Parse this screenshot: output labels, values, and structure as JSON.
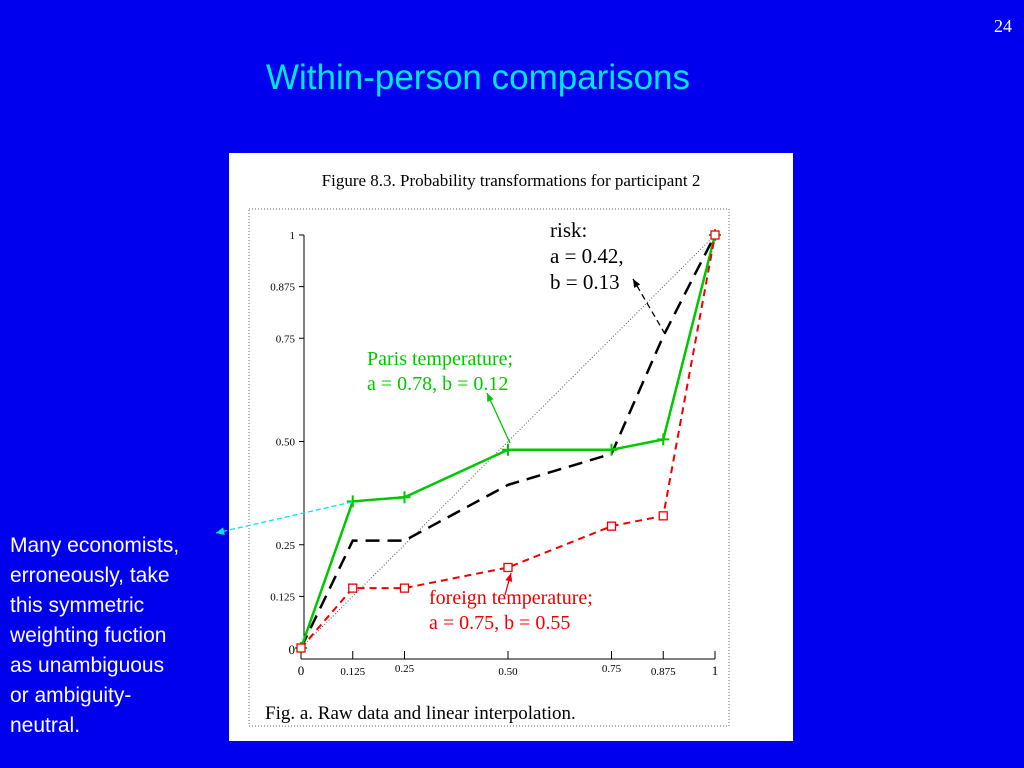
{
  "slide_number": "24",
  "title": "Within-person comparisons",
  "side_note": [
    "Many economists,",
    "erroneously, take",
    "this symmetric",
    "weighting fuction",
    "as unambiguous",
    "or ambiguity-",
    "neutral."
  ],
  "figure": {
    "caption": "Figure 8.3.  Probability transformations for participant 2",
    "subcaption": "Fig. a. Raw data and linear interpolation."
  },
  "colors": {
    "background": "#0000ee",
    "title": "#00e5e5",
    "risk": "#000000",
    "paris": "#00c800",
    "foreign": "#ee0000",
    "note_arrow": "#00e5e5"
  },
  "chart_data": {
    "type": "line",
    "x_ticks": [
      "0",
      "0.125",
      "0.25",
      "0.50",
      "0.75",
      "0.875",
      "1"
    ],
    "x_tick_values": [
      0,
      0.125,
      0.25,
      0.5,
      0.75,
      0.875,
      1
    ],
    "y_ticks": [
      "0",
      "0.125",
      "0.25",
      "0.50",
      "0.75",
      "0.875",
      "1"
    ],
    "y_tick_values": [
      0,
      0.125,
      0.25,
      0.5,
      0.75,
      0.875,
      1
    ],
    "xlim": [
      0,
      1
    ],
    "ylim": [
      0,
      1
    ],
    "x": [
      0,
      0.125,
      0.25,
      0.5,
      0.75,
      0.875,
      1
    ],
    "series": [
      {
        "key": "risk",
        "values": [
          0,
          0.26,
          0.26,
          0.395,
          0.47,
          0.755,
          1
        ]
      },
      {
        "key": "paris",
        "values": [
          0,
          0.355,
          0.365,
          0.48,
          0.48,
          0.505,
          1
        ]
      },
      {
        "key": "foreign",
        "values": [
          0,
          0.145,
          0.145,
          0.195,
          0.295,
          0.32,
          1
        ]
      }
    ],
    "annotations": {
      "risk": [
        "risk:",
        "a = 0.42,",
        "b = 0.13"
      ],
      "paris": [
        "Paris temperature;",
        "a = 0.78, b = 0.12"
      ],
      "foreign": [
        "foreign temperature;",
        "a = 0.75, b = 0.55"
      ]
    }
  }
}
